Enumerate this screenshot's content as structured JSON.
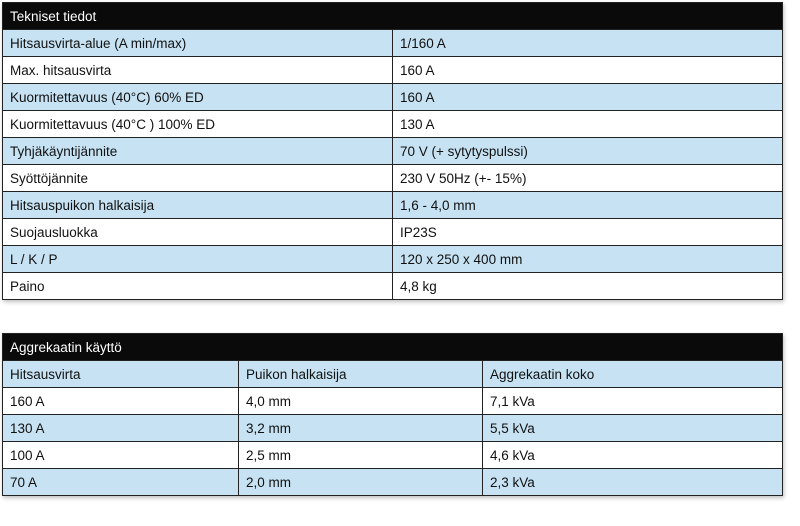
{
  "specs": {
    "title": "Tekniset tiedot",
    "rows": [
      [
        "Hitsausvirta-alue (A min/max)",
        "1/160 A"
      ],
      [
        "Max. hitsausvirta",
        "160 A"
      ],
      [
        "Kuormitettavuus  (40°C) 60% ED",
        "160 A"
      ],
      [
        "Kuormitettavuus (40°C ) 100% ED",
        "130 A"
      ],
      [
        "Tyhjäkäyntijännite",
        "70 V (+ sytytyspulssi)"
      ],
      [
        "Syöttöjännite",
        "230 V 50Hz (+- 15%)"
      ],
      [
        "Hitsauspuikon halkaisija",
        "1,6 - 4,0 mm"
      ],
      [
        "Suojausluokka",
        "IP23S"
      ],
      [
        "L / K / P",
        "120 x 250 x 400 mm"
      ],
      [
        "Paino",
        "4,8 kg"
      ]
    ]
  },
  "generator": {
    "title": "Aggrekaatin käyttö",
    "header": [
      "Hitsausvirta",
      "Puikon halkaisija",
      "Aggrekaatin koko"
    ],
    "rows": [
      [
        "160 A",
        "4,0 mm",
        "7,1 kVa"
      ],
      [
        "130 A",
        "3,2 mm",
        "5,5 kVa"
      ],
      [
        "100 A",
        "2,5 mm",
        "4,6 kVa"
      ],
      [
        "70 A",
        "2,0 mm",
        "2,3 kVa"
      ]
    ]
  }
}
